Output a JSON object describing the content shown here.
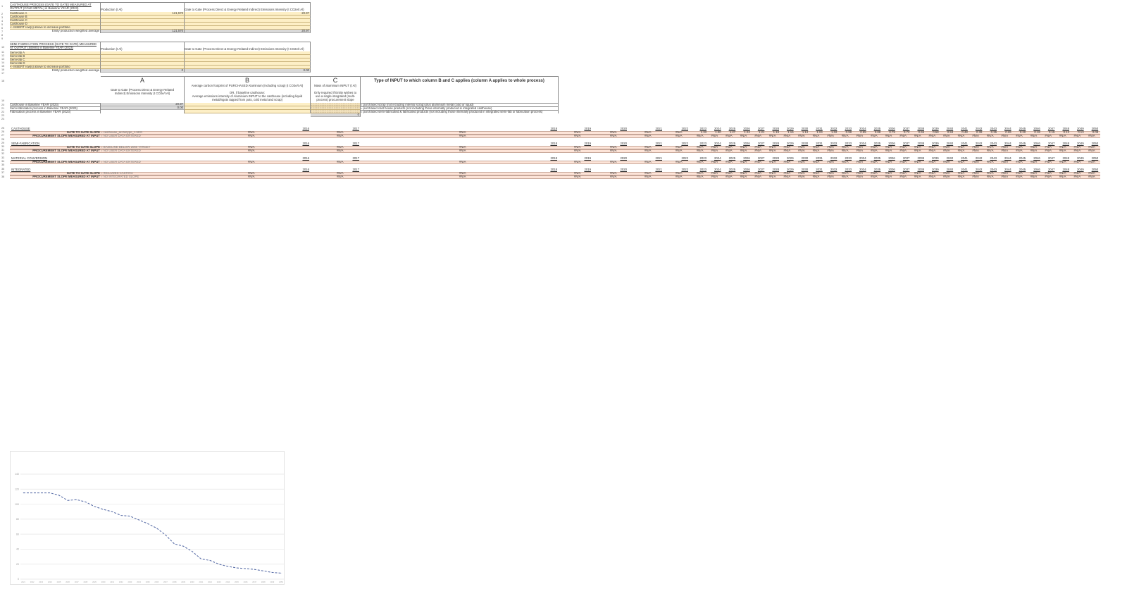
{
  "row_numbers": [
    "1",
    "2",
    "3",
    "4",
    "5",
    "6",
    "7",
    "8",
    "9",
    "10",
    "11",
    "12",
    "13",
    "14",
    "15",
    "16",
    "17",
    "18",
    "19",
    "20",
    "21",
    "22",
    "23",
    "24",
    "25",
    "26",
    "27",
    "28",
    "29",
    "30",
    "31",
    "32",
    "33",
    "34",
    "35",
    "36",
    "37",
    "38"
  ],
  "casthouse_table": {
    "header": "CASTHOUSE PROCESS (GATE TO GATE) MEASURED AT OUTPUT (COLD METAL) in Baseline YEAR (2023)",
    "col_production": "Production (t Al)",
    "col_intensity": "Gate to Gate (Process Direct & Energy Related Indirect) Emissions Intensity (t CO2e/t Al)",
    "rows": [
      {
        "label": "Casthouse A",
        "production": "121,570",
        "intensity": "20.97"
      },
      {
        "label": "Casthouse B",
        "production": "",
        "intensity": ""
      },
      {
        "label": "Casthouse C",
        "production": "",
        "intensity": ""
      },
      {
        "label": "Casthouse D",
        "production": "",
        "intensity": ""
      },
      {
        "label": "<- INSERT row(s) above to increase portfolio",
        "production": "",
        "intensity": ""
      }
    ],
    "average": {
      "label": "Entity production weighted average",
      "production": "121,570",
      "intensity": "20.97"
    }
  },
  "semifab_table": {
    "header": "SEMI-FABRICATION PROCESS (GATE TO GATE) MEASURED AT OUTPUT (SEMIS) in Baseline YEAR (2023)",
    "col_production": "Production (t Al)",
    "col_intensity": "Gate to Gate (Process Direct & Energy Related Indirect) Emissions Intensity (t CO2e/t Al)",
    "rows": [
      {
        "label": "Semi-fab A",
        "production": "",
        "intensity": ""
      },
      {
        "label": "Semi-fab B",
        "production": "",
        "intensity": ""
      },
      {
        "label": "Semi-fab C",
        "production": "",
        "intensity": ""
      },
      {
        "label": "Semi-fab D",
        "production": "",
        "intensity": ""
      },
      {
        "label": "<- INSERT row(s) above to increase portfolio",
        "production": "",
        "intensity": ""
      }
    ],
    "average": {
      "label": "Entity production weighted average",
      "production": "0",
      "intensity": "0.00"
    }
  },
  "input_table": {
    "col_a": {
      "letter": "A",
      "desc": "Gate to Gate (Process Direct & Energy Related Indirect) Emissions Intensity (t CO2e/t Al)"
    },
    "col_b": {
      "letter": "B",
      "desc1": "Average carbon footprint of PURCHASED Aluminium (including scrap) (t CO2e/t Al)",
      "desc2": "OR, if baseline casthouse:",
      "desc3": "Average emissions intensity of Aluminium INPUT to the casthouse (including liquid metal/ingots tapped from pots, cold metal and scrap)"
    },
    "col_c": {
      "letter": "C",
      "desc1": "Mass of aluminium INPUT (t Al)",
      "desc2": "Only required if Entity wishes to use a single integrated (multi-process) procurement slope"
    },
    "col_d_title": "Type of INPUT to which column B and C applies (column A applies to whole process)",
    "rows": [
      {
        "label": "Casthouse in Baseline YEAR (2023)",
        "a": "20.97",
        "d": "= purchased scrap (not including internal scrap) plus aluminium metal (cold or liquid)"
      },
      {
        "label": "Semi-fabrication process in Baseline YEAR (2023)",
        "a": "0.00",
        "d": "= purchased cast house products (not including those internally produced in integrated casthouse)"
      },
      {
        "label": "Fabrication process in Baseline YEAR (2023)",
        "a": "",
        "d": "= purchased semi-fabricated & fabricated products (not including those internally produced in integrated semi-fab or fabrication process)"
      }
    ],
    "c_total": "0"
  },
  "years": [
    "2016",
    "2017",
    "2018",
    "2019",
    "2020",
    "2021",
    "2022",
    "2023",
    "2024",
    "2025",
    "2026",
    "2027",
    "2028",
    "2029",
    "2030",
    "2031",
    "2032",
    "2033",
    "2034",
    "2035",
    "2036",
    "2037",
    "2038",
    "2039",
    "2040",
    "2041",
    "2042",
    "2043",
    "2044",
    "2045",
    "2046",
    "2047",
    "2048",
    "2049",
    "2050"
  ],
  "slope_sections": [
    {
      "title": "CASTHOUSE",
      "rows": [
        {
          "label": "GATE TO GATE SLOPE",
          "status": "= casthouse_archetype_1.5DG",
          "values": [
            "#N/A",
            "#N/A",
            "#N/A",
            "#N/A",
            "#N/A",
            "#N/A",
            "#N/A",
            "1.33",
            "1.30",
            "1.27",
            "1.24",
            "1.21",
            "1.19",
            "1.16",
            "1.14",
            "1.04",
            "1.02",
            "0.98",
            "0.95",
            "0.88",
            "0.79",
            "0.72",
            "0.65",
            "0.58",
            "0.53",
            "0.48",
            "0.39",
            "0.35",
            "0.26",
            "0.20",
            "0.18",
            "0.15",
            "0.13",
            "0.13",
            "0.08"
          ]
        },
        {
          "label": "PROCUREMENT SLOPE MEASURED AT INPUT",
          "status": "= NO USER DATA ENTERED",
          "values": "NA"
        }
      ]
    },
    {
      "title": "SEMI-FABRICATION",
      "rows": [
        {
          "label": "GATE TO GATE SLOPE",
          "status": "= BASELINE BELOW 2050 TARGET",
          "values": "NA"
        },
        {
          "label": "PROCUREMENT SLOPE MEASURED AT INPUT",
          "status": "= NO USER DATA ENTERED",
          "values": "NA"
        }
      ]
    },
    {
      "title": "MATERIAL CONVERSION",
      "rows": [
        {
          "label": "PROCUREMENT SLOPE MEASURED AT INPUT",
          "status": "= NO USER DATA ENTERED",
          "values": "NA"
        }
      ]
    },
    {
      "title": "INTEGRATED",
      "rows": [
        {
          "label": "GATE TO GATE SLOPE",
          "status": "= INCLUDES CASTING",
          "values": "NA"
        },
        {
          "label": "PROCUREMENT SLOPE MEASURED AT INPUT",
          "status": "= NO INTEGRATED SLOPE",
          "values": "NA"
        }
      ]
    }
  ],
  "na_text": "#N/A",
  "chart_data": {
    "type": "line",
    "categories": [
      "2021",
      "2022",
      "2023",
      "2024",
      "2025",
      "2026",
      "2027",
      "2028",
      "2029",
      "2030",
      "2031",
      "2032",
      "2033",
      "2034",
      "2035",
      "2036",
      "2037",
      "2038",
      "2039",
      "2040",
      "2041",
      "2042",
      "2043",
      "2044",
      "2045",
      "2046",
      "2047",
      "2048",
      "2049",
      "2050"
    ],
    "series": [
      {
        "values": [
          115,
          115,
          115,
          115,
          112,
          105,
          106,
          103,
          97,
          93,
          90,
          85,
          84,
          79,
          74,
          68,
          59,
          47,
          44,
          37,
          27,
          25,
          20,
          17,
          15,
          14,
          13,
          11,
          9,
          8
        ],
        "color": "#5b6fa8",
        "style": "dashed"
      }
    ],
    "yticks": [
      "0",
      "20",
      "40",
      "60",
      "80",
      "100",
      "120",
      "140"
    ],
    "ylim": [
      0,
      140
    ],
    "grid": true
  },
  "colors": {
    "input_yellow": "#fdefc6",
    "calc_gray": "#d9d9d9",
    "slope_pink": "#fde4d8",
    "line": "#5b6fa8"
  }
}
